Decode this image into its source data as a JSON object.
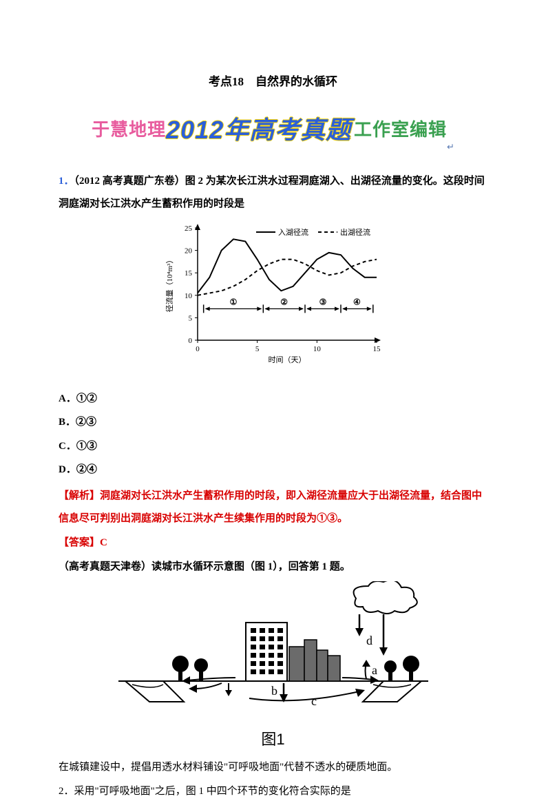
{
  "title": "考点18　自然界的水循环",
  "banner": {
    "left": "于慧地理",
    "mid": "2012年高考真题",
    "right": "工作室编辑",
    "end": "↵"
  },
  "q1": {
    "num": "1．",
    "stem": "（2012 高考真题广东卷）图 2 为某次长江洪水过程洞庭湖入、出湖径流量的变化。这段时间洞庭湖对长江洪水产生蓄积作用的时段是"
  },
  "chart1": {
    "type": "line",
    "xlabel": "时间（天）",
    "ylabel": "径流量（10⁴m³）",
    "xlim": [
      0,
      15
    ],
    "ylim": [
      0,
      25
    ],
    "xticks": [
      0,
      5,
      10,
      15
    ],
    "yticks": [
      0,
      5,
      10,
      15,
      20,
      25
    ],
    "legend": {
      "in": "入湖径流",
      "out": "出湖径流"
    },
    "series": {
      "in": {
        "style": "solid",
        "color": "#000000",
        "points": [
          [
            0,
            10.5
          ],
          [
            1,
            14
          ],
          [
            2,
            20
          ],
          [
            3,
            22.5
          ],
          [
            4,
            22
          ],
          [
            5,
            18
          ],
          [
            6,
            13.5
          ],
          [
            7,
            11
          ],
          [
            8,
            12
          ],
          [
            9,
            15
          ],
          [
            10,
            18
          ],
          [
            11,
            19.5
          ],
          [
            12,
            19
          ],
          [
            13,
            16
          ],
          [
            14,
            14
          ],
          [
            15,
            14
          ]
        ]
      },
      "out": {
        "style": "dashed",
        "color": "#000000",
        "points": [
          [
            0,
            10
          ],
          [
            1,
            10.5
          ],
          [
            2,
            11
          ],
          [
            3,
            12
          ],
          [
            4,
            13.5
          ],
          [
            5,
            15.5
          ],
          [
            6,
            17
          ],
          [
            7,
            18
          ],
          [
            8,
            18
          ],
          [
            9,
            17
          ],
          [
            10,
            15.5
          ],
          [
            11,
            14.5
          ],
          [
            12,
            15
          ],
          [
            13,
            16.5
          ],
          [
            14,
            17.5
          ],
          [
            15,
            18
          ]
        ]
      }
    },
    "segments": [
      "①",
      "②",
      "③",
      "④"
    ],
    "segment_breaks": [
      0.5,
      5.5,
      9,
      12,
      14.7
    ],
    "marker_y": 7,
    "background_color": "#ffffff",
    "axis_color": "#000000",
    "label_fontsize": 11
  },
  "options": {
    "A": "A．①②",
    "B": "B．②③",
    "C": "C．①③",
    "D": "D．②④"
  },
  "analysis": {
    "label": "【解析】",
    "text": "洞庭湖对长江洪水产生蓄积作用的时段，即入湖径流量应大于出湖径流量，结合图中信息尽可判别出洞庭湖对长江洪水产生续集作用的时段为①③。"
  },
  "answer": {
    "label": "【答案】",
    "value": "C"
  },
  "q2intro": "（高考真题天津卷）读城市水循环示意图（图 1），回答第 1 题。",
  "fig2": {
    "type": "diagram",
    "label": "图1",
    "arrows": [
      "a",
      "b",
      "c",
      "d"
    ],
    "elements": [
      "cloud",
      "rain",
      "building-tall",
      "building-short",
      "trees",
      "ground",
      "river-left",
      "river-right"
    ],
    "colors": {
      "line": "#000000",
      "fill_building": "#6b6b6b",
      "background": "#ffffff"
    }
  },
  "q2line1": "在城镇建设中，提倡用透水材料铺设\"可呼吸地面\"代替不透水的硬质地面。",
  "q2": "2．采用\"可呼吸地面\"之后，图 1 中四个环节的变化符合实际的是"
}
